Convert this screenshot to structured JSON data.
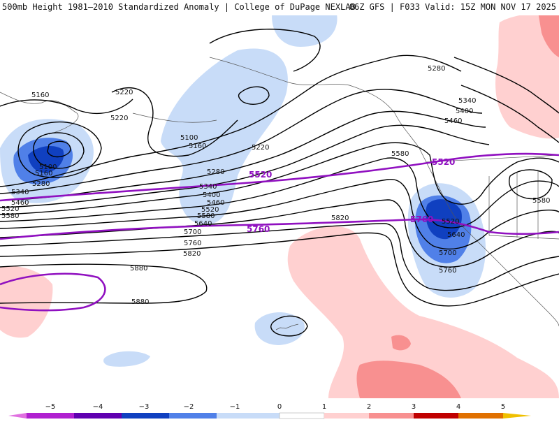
{
  "title": {
    "left": "500mb Height 1981–2010 Standardized Anomaly | College of DuPage NEXLAB",
    "right": "06Z GFS | F033 Valid: 15Z MON NOV 17 2025"
  },
  "colors": {
    "neg5": "#e070e0",
    "neg4": "#8000c0",
    "neg3": "#1040c0",
    "neg2": "#5080e8",
    "neg1": "#c8dcf8",
    "zero": "#ffffff",
    "pos1": "#ffd0d0",
    "pos2": "#f89090",
    "pos3": "#e03030",
    "pos4": "#c00000",
    "pos5": "#f0a000",
    "contour": "#000000",
    "highlight": "#9010c0",
    "land": "#ffffff",
    "border": "#555555"
  },
  "contour_labels": [
    "5160",
    "5220",
    "5220",
    "5100",
    "5160",
    "5220",
    "5280",
    "5340",
    "5400",
    "5460",
    "5520",
    "5580",
    "5640",
    "5700",
    "5760",
    "5820",
    "5880",
    "5880",
    "5280",
    "5340",
    "5400",
    "5460",
    "5580",
    "5520",
    "5640",
    "5700",
    "5760",
    "5820",
    "5580",
    "5100",
    "5160",
    "5280",
    "5340",
    "5460",
    "5520",
    "5580"
  ],
  "highlight_labels": [
    "5520",
    "5760",
    "5520",
    "5760"
  ],
  "colorbar": {
    "ticks": [
      "−5",
      "−4",
      "−3",
      "−2",
      "−1",
      "0",
      "1",
      "2",
      "3",
      "4",
      "5"
    ]
  }
}
